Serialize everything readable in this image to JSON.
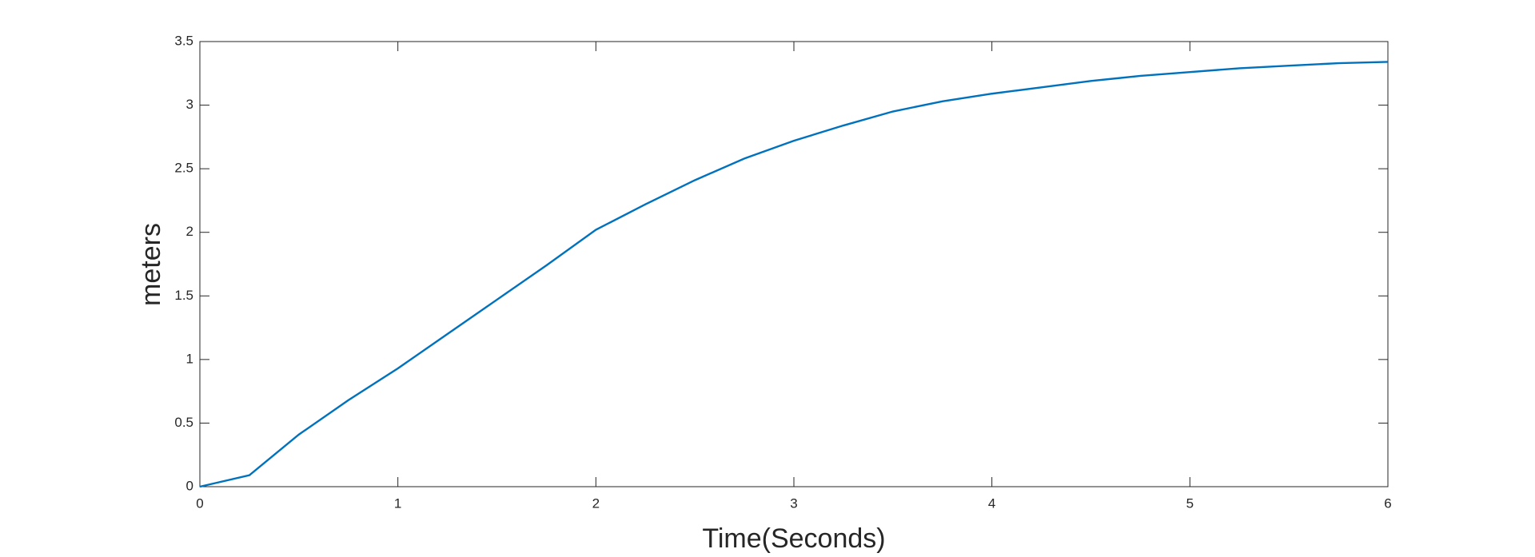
{
  "chart_data": {
    "type": "line",
    "xlabel": "Time(Seconds)",
    "ylabel": "meters",
    "x": [
      0,
      0.25,
      0.5,
      0.75,
      1,
      1.25,
      1.5,
      1.75,
      2,
      2.25,
      2.5,
      2.75,
      3,
      3.25,
      3.5,
      3.75,
      4,
      4.25,
      4.5,
      4.75,
      5,
      5.25,
      5.5,
      5.75,
      6
    ],
    "series": [
      {
        "color": "#0072bd",
        "values": [
          0,
          0.09,
          0.41,
          0.68,
          0.93,
          1.2,
          1.47,
          1.74,
          2.02,
          2.22,
          2.41,
          2.58,
          2.72,
          2.84,
          2.95,
          3.03,
          3.09,
          3.14,
          3.19,
          3.23,
          3.26,
          3.29,
          3.31,
          3.33,
          3.34
        ]
      }
    ],
    "xlim": [
      0,
      6
    ],
    "xticks": [
      0,
      1,
      2,
      3,
      4,
      5,
      6
    ],
    "ylim": [
      0,
      3.5
    ],
    "yticks": [
      0,
      0.5,
      1,
      1.5,
      2,
      2.5,
      3,
      3.5
    ],
    "grid": false
  }
}
